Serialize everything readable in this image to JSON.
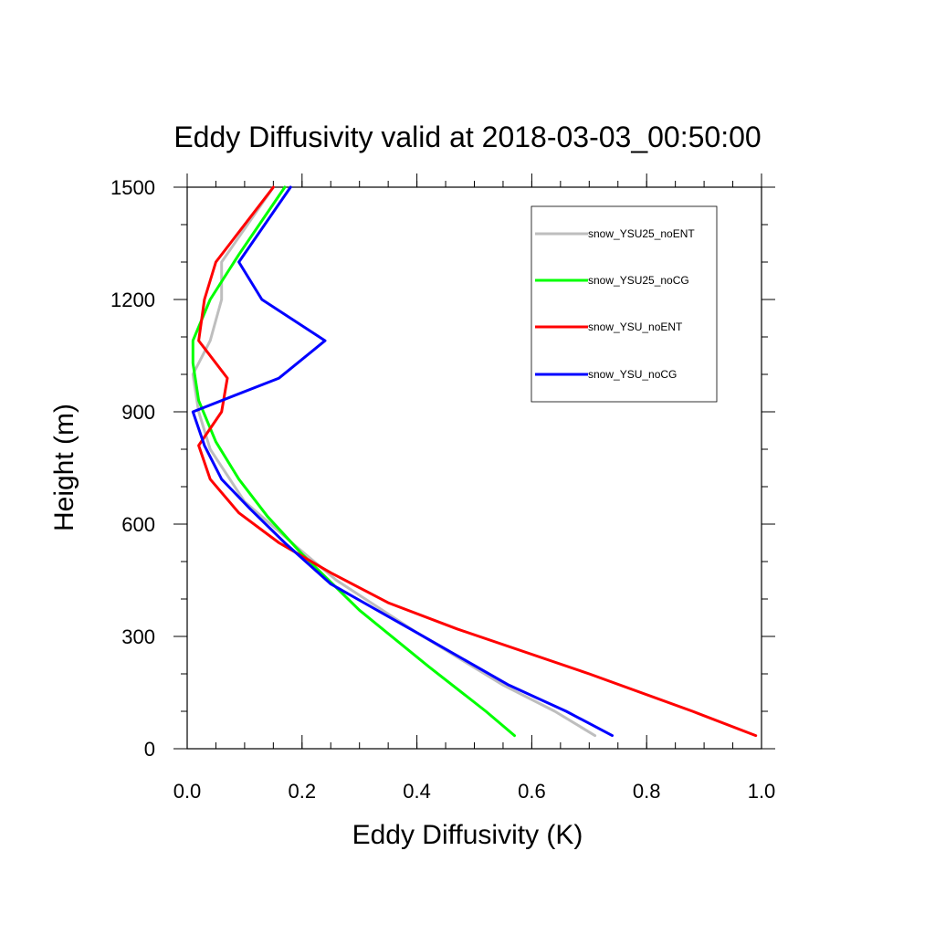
{
  "chart_data": {
    "type": "line",
    "title": "Eddy Diffusivity valid at 2018-03-03_00:50:00",
    "xlabel": "Eddy Diffusivity (K)",
    "ylabel": "Height (m)",
    "xlim": [
      0.0,
      1.0
    ],
    "ylim": [
      0,
      1500
    ],
    "x_ticks": [
      "0.0",
      "0.2",
      "0.4",
      "0.6",
      "0.8",
      "1.0"
    ],
    "y_ticks": [
      "0",
      "300",
      "600",
      "900",
      "1200",
      "1500"
    ],
    "grid": false,
    "legend_position": "top-right",
    "series": [
      {
        "name": "snow_YSU25_noENT",
        "color": "#bebebe",
        "points": [
          [
            0.71,
            35
          ],
          [
            0.64,
            100
          ],
          [
            0.55,
            170
          ],
          [
            0.4,
            310
          ],
          [
            0.26,
            450
          ],
          [
            0.19,
            540
          ],
          [
            0.1,
            660
          ],
          [
            0.04,
            800
          ],
          [
            0.02,
            900
          ],
          [
            0.01,
            1000
          ],
          [
            0.04,
            1090
          ],
          [
            0.06,
            1200
          ],
          [
            0.06,
            1300
          ],
          [
            0.15,
            1500
          ]
        ]
      },
      {
        "name": "snow_YSU25_noCG",
        "color": "#00ff00",
        "points": [
          [
            0.57,
            35
          ],
          [
            0.52,
            100
          ],
          [
            0.42,
            220
          ],
          [
            0.3,
            370
          ],
          [
            0.2,
            520
          ],
          [
            0.14,
            620
          ],
          [
            0.09,
            720
          ],
          [
            0.05,
            820
          ],
          [
            0.02,
            930
          ],
          [
            0.01,
            1030
          ],
          [
            0.01,
            1090
          ],
          [
            0.04,
            1200
          ],
          [
            0.09,
            1320
          ],
          [
            0.17,
            1500
          ]
        ]
      },
      {
        "name": "snow_YSU_noENT",
        "color": "#ff0000",
        "points": [
          [
            0.99,
            35
          ],
          [
            0.88,
            100
          ],
          [
            0.7,
            200
          ],
          [
            0.47,
            320
          ],
          [
            0.35,
            390
          ],
          [
            0.25,
            470
          ],
          [
            0.16,
            550
          ],
          [
            0.09,
            630
          ],
          [
            0.04,
            720
          ],
          [
            0.02,
            810
          ],
          [
            0.06,
            900
          ],
          [
            0.07,
            990
          ],
          [
            0.02,
            1090
          ],
          [
            0.03,
            1200
          ],
          [
            0.05,
            1300
          ],
          [
            0.15,
            1500
          ]
        ]
      },
      {
        "name": "snow_YSU_noCG",
        "color": "#0000ff",
        "points": [
          [
            0.74,
            35
          ],
          [
            0.66,
            100
          ],
          [
            0.56,
            170
          ],
          [
            0.4,
            310
          ],
          [
            0.25,
            440
          ],
          [
            0.17,
            550
          ],
          [
            0.11,
            640
          ],
          [
            0.06,
            720
          ],
          [
            0.03,
            810
          ],
          [
            0.01,
            900
          ],
          [
            0.16,
            990
          ],
          [
            0.24,
            1090
          ],
          [
            0.13,
            1200
          ],
          [
            0.09,
            1300
          ],
          [
            0.18,
            1500
          ]
        ]
      }
    ]
  }
}
